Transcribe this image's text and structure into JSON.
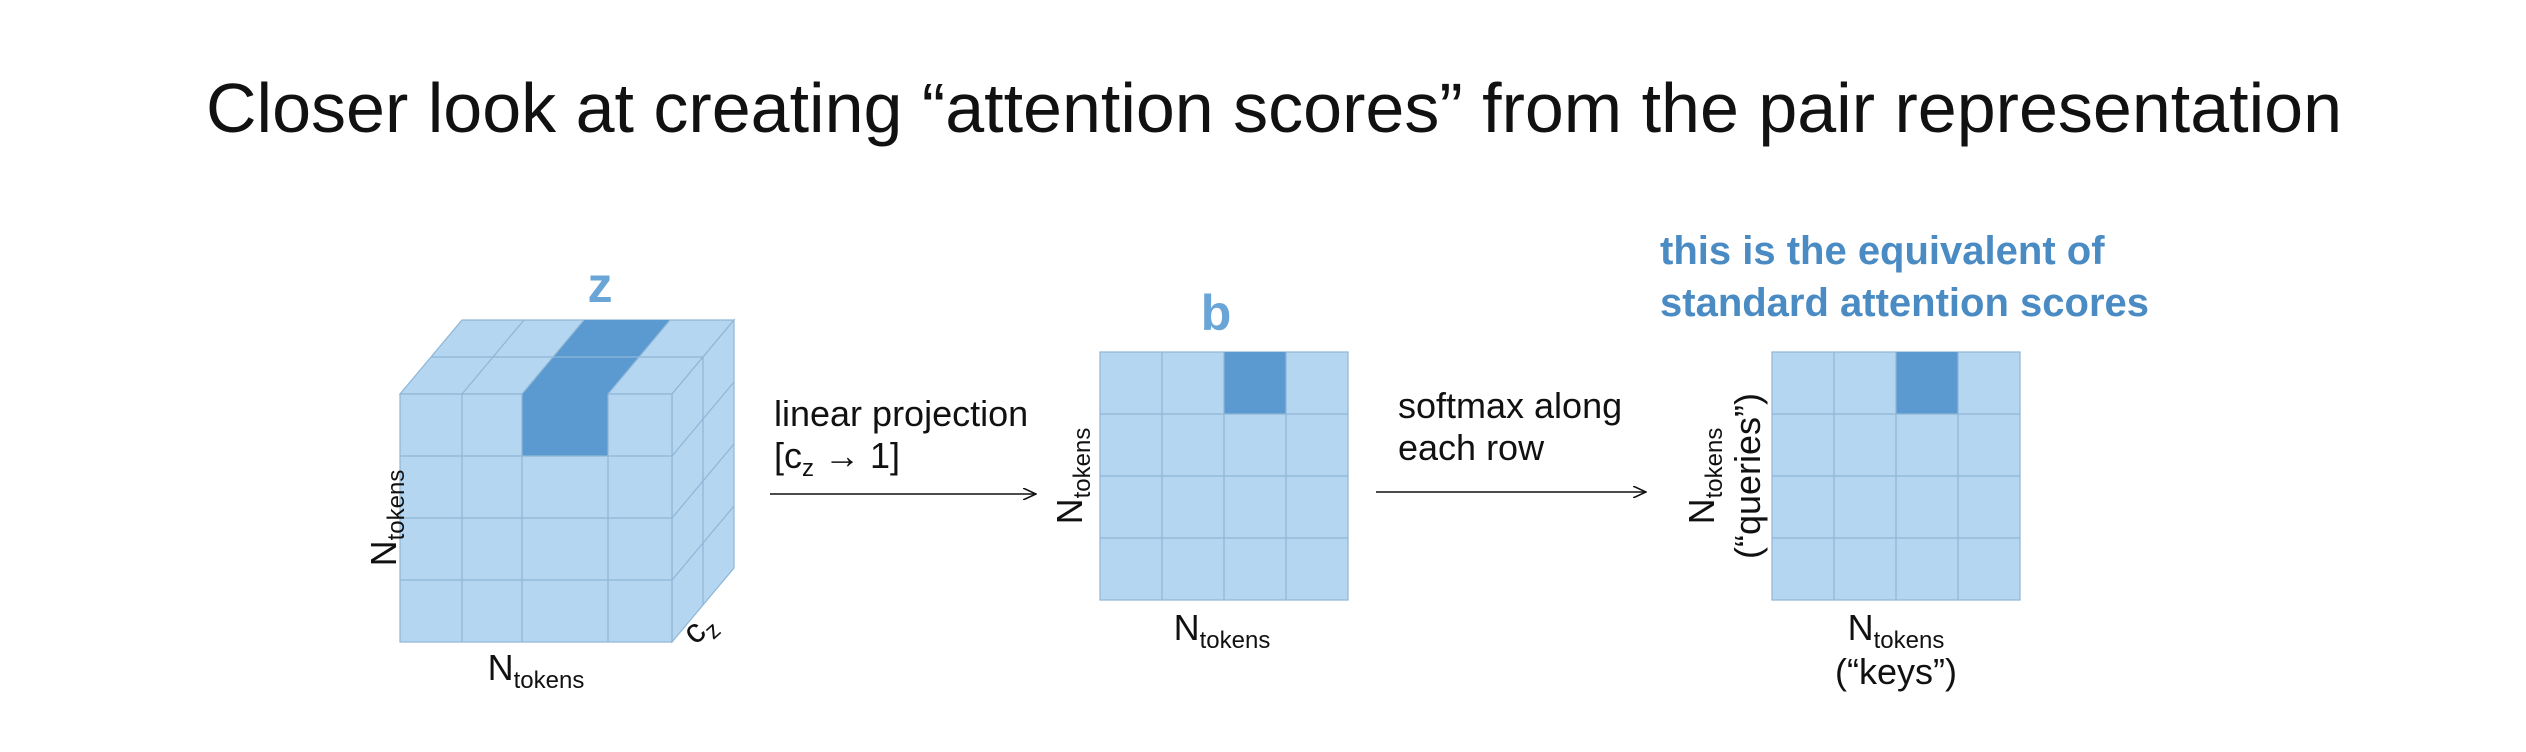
{
  "title": "Closer look at creating “attention scores” from the pair representation",
  "cube": {
    "label": "z",
    "axis_vertical_main": "N",
    "axis_vertical_sub": "tokens",
    "axis_bottom_main": "N",
    "axis_bottom_sub": "tokens",
    "axis_depth_main": "c",
    "axis_depth_sub": "z"
  },
  "arrow1": {
    "line1": "linear projection",
    "line2_open": "[c",
    "line2_sub": "z",
    "line2_close": " → 1]"
  },
  "matrix_b": {
    "label": "b",
    "axis_vertical_main": "N",
    "axis_vertical_sub": "tokens",
    "axis_bottom_main": "N",
    "axis_bottom_sub": "tokens"
  },
  "arrow2": {
    "line1": "softmax along",
    "line2": "each row"
  },
  "matrix_scores": {
    "note_line1": "this is the equivalent of",
    "note_line2": "standard attention scores",
    "axis_vertical_main": "N",
    "axis_vertical_sub": "tokens",
    "axis_vertical_note": "(“queries”)",
    "axis_bottom_main": "N",
    "axis_bottom_sub": "tokens",
    "axis_bottom_note": "(“keys”)"
  },
  "colors": {
    "cell_light": "#b5d6f0",
    "cell_dark": "#5a9ad0",
    "grid_line": "#8fb6d6",
    "accent_text": "#4a8bc4",
    "label_text": "#6aa5d8",
    "text": "#111111"
  }
}
